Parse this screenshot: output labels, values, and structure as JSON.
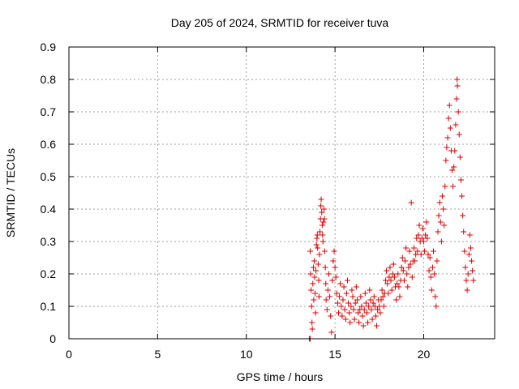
{
  "chart_data": {
    "type": "scatter",
    "title": "Day 205 of 2024, SRMTID for receiver tuva",
    "xlabel": "GPS time / hours",
    "ylabel": "SRMTID / TECUs",
    "xlim": [
      0,
      24
    ],
    "ylim": [
      0,
      0.9
    ],
    "xticks": [
      0,
      5,
      10,
      15,
      20
    ],
    "yticks": [
      0,
      0.1,
      0.2,
      0.3,
      0.4,
      0.5,
      0.6,
      0.7,
      0.8,
      0.9
    ],
    "xtick_labels": [
      "0",
      "5",
      "10",
      "15",
      "20"
    ],
    "ytick_labels": [
      "0",
      "0.1",
      "0.2",
      "0.3",
      "0.4",
      "0.5",
      "0.6",
      "0.7",
      "0.8",
      "0.9"
    ],
    "grid": true,
    "marker": "+",
    "color": "#dd0000",
    "series": [
      {
        "name": "SRMTID",
        "points": [
          [
            13.55,
            0.0
          ],
          [
            13.6,
            0.0
          ],
          [
            13.6,
            0.27
          ],
          [
            13.62,
            0.2
          ],
          [
            13.65,
            0.15
          ],
          [
            13.68,
            0.1
          ],
          [
            13.7,
            0.05
          ],
          [
            13.72,
            0.03
          ],
          [
            13.75,
            0.17
          ],
          [
            13.78,
            0.22
          ],
          [
            13.8,
            0.12
          ],
          [
            13.83,
            0.24
          ],
          [
            13.85,
            0.19
          ],
          [
            13.88,
            0.14
          ],
          [
            13.9,
            0.08
          ],
          [
            13.92,
            0.21
          ],
          [
            13.95,
            0.29
          ],
          [
            13.98,
            0.31
          ],
          [
            14.0,
            0.32
          ],
          [
            14.02,
            0.28
          ],
          [
            14.05,
            0.23
          ],
          [
            14.08,
            0.18
          ],
          [
            14.1,
            0.13
          ],
          [
            14.12,
            0.26
          ],
          [
            14.15,
            0.33
          ],
          [
            14.18,
            0.37
          ],
          [
            14.2,
            0.41
          ],
          [
            14.22,
            0.43
          ],
          [
            14.25,
            0.39
          ],
          [
            14.28,
            0.35
          ],
          [
            14.3,
            0.32
          ],
          [
            14.32,
            0.3
          ],
          [
            14.35,
            0.36
          ],
          [
            14.38,
            0.4
          ],
          [
            14.4,
            0.37
          ],
          [
            14.42,
            0.27
          ],
          [
            14.45,
            0.22
          ],
          [
            14.48,
            0.17
          ],
          [
            14.5,
            0.12
          ],
          [
            14.55,
            0.09
          ],
          [
            14.6,
            0.15
          ],
          [
            14.65,
            0.2
          ],
          [
            14.7,
            0.13
          ],
          [
            14.75,
            0.07
          ],
          [
            14.8,
            0.02
          ],
          [
            14.85,
            0.18
          ],
          [
            14.9,
            0.24
          ],
          [
            14.95,
            0.27
          ],
          [
            15.0,
            0.22
          ],
          [
            15.05,
            0.19
          ],
          [
            15.1,
            0.14
          ],
          [
            15.15,
            0.11
          ],
          [
            15.2,
            0.08
          ],
          [
            15.25,
            0.13
          ],
          [
            15.3,
            0.17
          ],
          [
            15.35,
            0.1
          ],
          [
            15.4,
            0.07
          ],
          [
            15.45,
            0.12
          ],
          [
            15.5,
            0.16
          ],
          [
            15.55,
            0.09
          ],
          [
            15.6,
            0.06
          ],
          [
            15.65,
            0.14
          ],
          [
            15.7,
            0.18
          ],
          [
            15.75,
            0.11
          ],
          [
            15.8,
            0.08
          ],
          [
            15.85,
            0.05
          ],
          [
            15.9,
            0.1
          ],
          [
            15.95,
            0.15
          ],
          [
            16.0,
            0.13
          ],
          [
            16.05,
            0.09
          ],
          [
            16.1,
            0.06
          ],
          [
            16.15,
            0.11
          ],
          [
            16.2,
            0.16
          ],
          [
            16.25,
            0.12
          ],
          [
            16.3,
            0.08
          ],
          [
            16.35,
            0.05
          ],
          [
            16.4,
            0.09
          ],
          [
            16.45,
            0.13
          ],
          [
            16.5,
            0.1
          ],
          [
            16.55,
            0.07
          ],
          [
            16.6,
            0.04
          ],
          [
            16.65,
            0.09
          ],
          [
            16.7,
            0.14
          ],
          [
            16.75,
            0.11
          ],
          [
            16.8,
            0.08
          ],
          [
            16.85,
            0.05
          ],
          [
            16.9,
            0.1
          ],
          [
            16.95,
            0.15
          ],
          [
            17.0,
            0.12
          ],
          [
            17.05,
            0.09
          ],
          [
            17.1,
            0.06
          ],
          [
            17.15,
            0.11
          ],
          [
            17.2,
            0.13
          ],
          [
            17.25,
            0.1
          ],
          [
            17.3,
            0.07
          ],
          [
            17.35,
            0.04
          ],
          [
            17.4,
            0.09
          ],
          [
            17.45,
            0.12
          ],
          [
            17.5,
            0.1
          ],
          [
            17.55,
            0.08
          ],
          [
            17.6,
            0.12
          ],
          [
            17.65,
            0.15
          ],
          [
            17.7,
            0.13
          ],
          [
            17.75,
            0.1
          ],
          [
            17.8,
            0.14
          ],
          [
            17.85,
            0.18
          ],
          [
            17.9,
            0.21
          ],
          [
            17.95,
            0.17
          ],
          [
            18.0,
            0.14
          ],
          [
            18.05,
            0.19
          ],
          [
            18.1,
            0.22
          ],
          [
            18.15,
            0.18
          ],
          [
            18.2,
            0.15
          ],
          [
            18.25,
            0.2
          ],
          [
            18.3,
            0.23
          ],
          [
            18.35,
            0.19
          ],
          [
            18.4,
            0.16
          ],
          [
            18.45,
            0.12
          ],
          [
            18.5,
            0.17
          ],
          [
            18.55,
            0.2
          ],
          [
            18.6,
            0.16
          ],
          [
            18.65,
            0.13
          ],
          [
            18.7,
            0.18
          ],
          [
            18.75,
            0.22
          ],
          [
            18.8,
            0.25
          ],
          [
            18.85,
            0.21
          ],
          [
            18.9,
            0.18
          ],
          [
            18.95,
            0.24
          ],
          [
            19.0,
            0.28
          ],
          [
            19.05,
            0.2
          ],
          [
            19.1,
            0.16
          ],
          [
            19.15,
            0.22
          ],
          [
            19.2,
            0.27
          ],
          [
            19.25,
            0.23
          ],
          [
            19.3,
            0.42
          ],
          [
            19.35,
            0.19
          ],
          [
            19.4,
            0.24
          ],
          [
            19.45,
            0.28
          ],
          [
            19.5,
            0.24
          ],
          [
            19.55,
            0.26
          ],
          [
            19.6,
            0.31
          ],
          [
            19.65,
            0.27
          ],
          [
            19.7,
            0.32
          ],
          [
            19.75,
            0.35
          ],
          [
            19.8,
            0.3
          ],
          [
            19.85,
            0.26
          ],
          [
            19.9,
            0.31
          ],
          [
            19.95,
            0.34
          ],
          [
            20.0,
            0.3
          ],
          [
            20.05,
            0.27
          ],
          [
            20.1,
            0.32
          ],
          [
            20.15,
            0.36
          ],
          [
            20.2,
            0.31
          ],
          [
            20.25,
            0.26
          ],
          [
            20.3,
            0.21
          ],
          [
            20.35,
            0.25
          ],
          [
            20.4,
            0.19
          ],
          [
            20.45,
            0.15
          ],
          [
            20.5,
            0.22
          ],
          [
            20.55,
            0.27
          ],
          [
            20.6,
            0.2
          ],
          [
            20.65,
            0.13
          ],
          [
            20.7,
            0.1
          ],
          [
            20.75,
            0.24
          ],
          [
            20.8,
            0.33
          ],
          [
            20.85,
            0.38
          ],
          [
            20.9,
            0.42
          ],
          [
            20.95,
            0.36
          ],
          [
            21.0,
            0.3
          ],
          [
            21.05,
            0.44
          ],
          [
            21.1,
            0.4
          ],
          [
            21.15,
            0.35
          ],
          [
            21.2,
            0.47
          ],
          [
            21.25,
            0.55
          ],
          [
            21.3,
            0.59
          ],
          [
            21.35,
            0.62
          ],
          [
            21.4,
            0.68
          ],
          [
            21.45,
            0.72
          ],
          [
            21.5,
            0.65
          ],
          [
            21.55,
            0.58
          ],
          [
            21.6,
            0.52
          ],
          [
            21.65,
            0.47
          ],
          [
            21.7,
            0.53
          ],
          [
            21.75,
            0.58
          ],
          [
            21.8,
            0.66
          ],
          [
            21.85,
            0.74
          ],
          [
            21.88,
            0.8
          ],
          [
            21.9,
            0.78
          ],
          [
            21.95,
            0.7
          ],
          [
            22.0,
            0.63
          ],
          [
            22.05,
            0.56
          ],
          [
            22.1,
            0.49
          ],
          [
            22.15,
            0.44
          ],
          [
            22.2,
            0.38
          ],
          [
            22.25,
            0.33
          ],
          [
            22.3,
            0.27
          ],
          [
            22.35,
            0.22
          ],
          [
            22.4,
            0.18
          ],
          [
            22.45,
            0.15
          ],
          [
            22.5,
            0.2
          ],
          [
            22.55,
            0.26
          ],
          [
            22.6,
            0.32
          ],
          [
            22.65,
            0.28
          ],
          [
            22.7,
            0.24
          ],
          [
            22.75,
            0.21
          ],
          [
            22.8,
            0.18
          ]
        ]
      }
    ]
  }
}
